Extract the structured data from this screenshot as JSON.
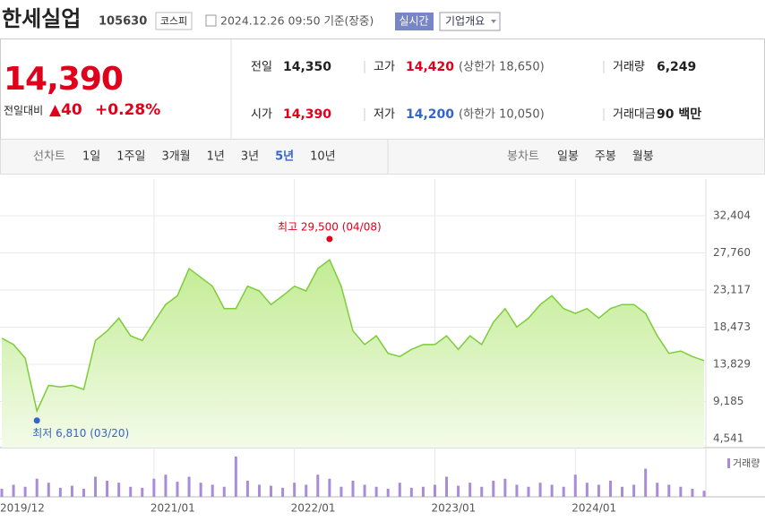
{
  "header": {
    "title": "한세실업",
    "code": "105630",
    "market": "코스피",
    "datetime": "2024.12.26 09:50 기준(장중)",
    "realtime_button": "실시간",
    "company_button": "기업개요"
  },
  "summary": {
    "price": "14,390",
    "change_label": "전일대비",
    "change_value": "▲40",
    "change_percent": "+0.28%",
    "stats": [
      [
        {
          "label": "전일",
          "value": "14,350"
        },
        {
          "label": "고가",
          "value": "14,420",
          "extra": "(상한가 18,650)"
        },
        {
          "label": "거래량",
          "value": "6,249"
        }
      ],
      [
        {
          "label": "시가",
          "value": "14,390"
        },
        {
          "label": "저가",
          "value": "14,200",
          "extra": "(하한가 10,050)"
        },
        {
          "label": "거래대금",
          "value": "90 백만"
        }
      ]
    ]
  },
  "tabs": {
    "line_label": "선차트",
    "line_periods": [
      "1일",
      "1주일",
      "3개월",
      "1년",
      "3년",
      "5년",
      "10년"
    ],
    "active_period_index": 5,
    "candle_label": "봉차트",
    "candle_periods": [
      "일봉",
      "주봉",
      "월봉"
    ]
  },
  "chart_data": {
    "type": "area",
    "color": "#7dcc3a",
    "x": [
      "2019/12",
      null,
      null,
      null,
      null,
      null,
      null,
      null,
      null,
      null,
      null,
      null,
      null,
      "2021/01",
      null,
      null,
      null,
      null,
      null,
      null,
      null,
      null,
      null,
      null,
      null,
      "2022/01",
      null,
      null,
      null,
      null,
      null,
      null,
      null,
      null,
      null,
      null,
      null,
      "2023/01",
      null,
      null,
      null,
      null,
      null,
      null,
      null,
      null,
      null,
      null,
      null,
      "2024/01",
      null,
      null,
      null,
      null,
      null,
      null,
      null,
      null,
      null,
      null,
      null
    ],
    "values": [
      17100,
      16300,
      14600,
      8000,
      11200,
      11000,
      11200,
      10700,
      16800,
      18000,
      19600,
      17400,
      16800,
      19100,
      21300,
      22400,
      25800,
      24700,
      23600,
      20800,
      20800,
      23600,
      23000,
      21300,
      22400,
      23600,
      23000,
      25800,
      26900,
      23600,
      18000,
      16300,
      17400,
      15200,
      14800,
      15700,
      16300,
      16300,
      17400,
      15700,
      17400,
      16300,
      19100,
      20800,
      18500,
      19600,
      21300,
      22400,
      20800,
      20200,
      20800,
      19600,
      20800,
      21300,
      21300,
      20200,
      17400,
      15200,
      15500,
      14800,
      14300
    ],
    "ylim": [
      4541,
      32404
    ],
    "yticks": [
      {
        "value": 4541,
        "label": "4,541"
      },
      {
        "value": 9185,
        "label": "9,185"
      },
      {
        "value": 13829,
        "label": "13,829"
      },
      {
        "value": 18473,
        "label": "18,473"
      },
      {
        "value": 23117,
        "label": "23,117"
      },
      {
        "value": 27760,
        "label": "27,760"
      },
      {
        "value": 32404,
        "label": "32,404"
      }
    ],
    "grid": true,
    "annotations": [
      {
        "text": "최고 29,500 (04/08)",
        "value": 29500,
        "color": "#e0001b"
      },
      {
        "text": "최저 6,810 (03/20)",
        "value": 6810,
        "color": "#3565c8"
      }
    ],
    "volume": {
      "name": "거래량",
      "color": "#a98bd8",
      "values": [
        8,
        12,
        10,
        18,
        14,
        9,
        11,
        8,
        20,
        16,
        14,
        10,
        9,
        18,
        22,
        15,
        20,
        14,
        12,
        10,
        40,
        16,
        12,
        11,
        9,
        14,
        12,
        22,
        18,
        10,
        16,
        12,
        10,
        8,
        14,
        9,
        10,
        12,
        20,
        11,
        14,
        10,
        16,
        18,
        12,
        10,
        14,
        12,
        10,
        22,
        14,
        12,
        16,
        10,
        12,
        28,
        14,
        12,
        10,
        8,
        6
      ]
    }
  }
}
